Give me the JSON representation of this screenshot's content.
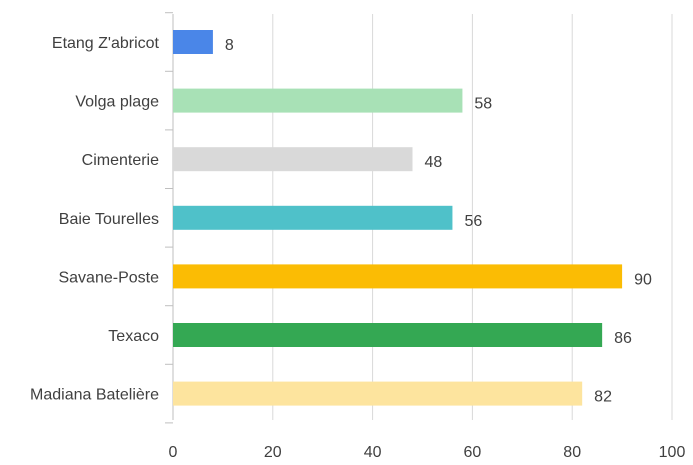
{
  "chart_data": {
    "type": "bar",
    "orientation": "horizontal",
    "categories": [
      "Etang Z'abricot",
      "Volga plage",
      "Cimenterie",
      "Baie Tourelles",
      "Savane-Poste",
      "Texaco",
      "Madiana Batelière"
    ],
    "values": [
      8,
      58,
      48,
      56,
      90,
      86,
      82
    ],
    "colors": [
      "#4a86e8",
      "#a8e1b6",
      "#d9d9d9",
      "#4fc1c9",
      "#fbbc04",
      "#34a853",
      "#fde49e"
    ],
    "xlim": [
      0,
      100
    ],
    "xticks": [
      0,
      20,
      40,
      60,
      80,
      100
    ],
    "grid": true,
    "data_labels": true,
    "legend": "none"
  }
}
